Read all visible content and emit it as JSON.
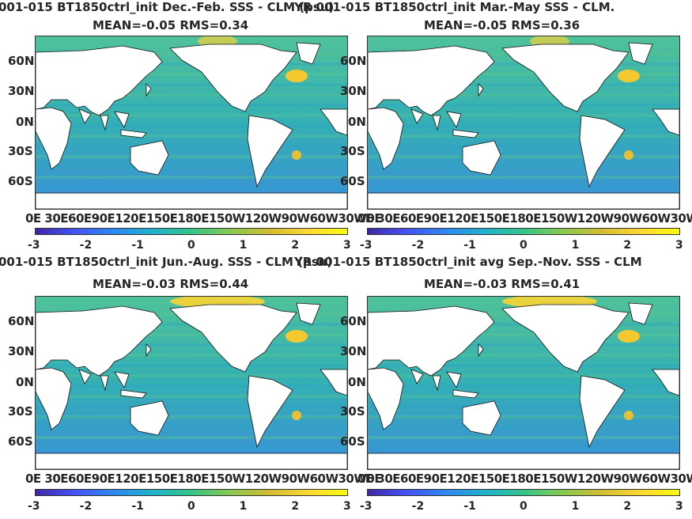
{
  "panels": [
    {
      "title_line1": "001-015 BT1850ctrl_init  Dec.-Feb. SSS - CLM (psu)",
      "title_line2": "MEAN=-0.05   RMS=0.34"
    },
    {
      "title_line1": "YR 001-015 BT1850ctrl_init Mar.-May SSS - CLM.",
      "title_line2": "MEAN=-0.05   RMS=0.36"
    },
    {
      "title_line1": "001-015 BT1850ctrl_init Jun.-Aug. SSS - CLM (psu)",
      "title_line2": "MEAN=-0.03   RMS=0.44"
    },
    {
      "title_line1": "YR 001-015 BT1850ctrl_init avg Sep.-Nov. SSS - CLM",
      "title_line2": "MEAN=-0.03   RMS=0.41"
    }
  ],
  "lat_labels": [
    "60N",
    "30N",
    "0N",
    "30S",
    "60S"
  ],
  "lon_labels": "0E 30E60E90E120E150E180E150W120W90W60W30W0E",
  "colorbar": {
    "ticks": [
      "-3",
      "-2",
      "-1",
      "0",
      "1",
      "2",
      "3"
    ],
    "range": [
      -3,
      3
    ]
  }
}
